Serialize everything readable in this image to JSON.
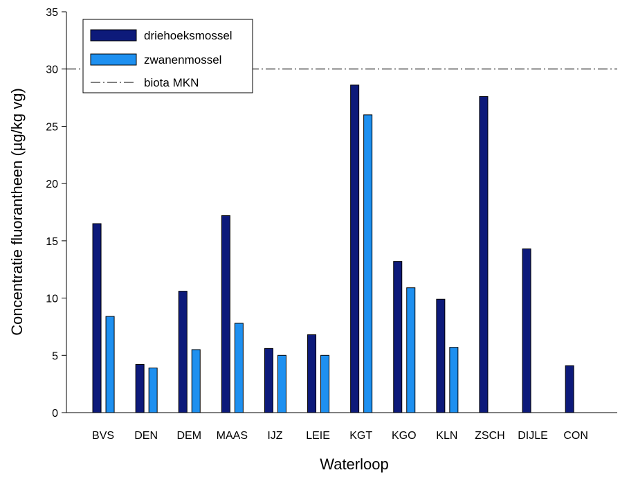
{
  "chart_data": {
    "type": "bar",
    "xlabel": "Waterloop",
    "ylabel": "Concentratie fluorantheen (µg/kg vg)",
    "ylim": [
      0,
      35
    ],
    "yticks": [
      0,
      5,
      10,
      15,
      20,
      25,
      30,
      35
    ],
    "categories": [
      "BVS",
      "DEN",
      "DEM",
      "MAAS",
      "IJZ",
      "LEIE",
      "KGT",
      "KGO",
      "KLN",
      "ZSCH",
      "DIJLE",
      "CON"
    ],
    "series": [
      {
        "name": "driehoeksmossel",
        "color": "#0d1a7a",
        "values": [
          16.5,
          4.2,
          10.6,
          17.2,
          5.6,
          6.8,
          28.6,
          13.2,
          9.9,
          27.6,
          14.3,
          4.1
        ]
      },
      {
        "name": "zwanenmossel",
        "color": "#1e90f0",
        "values": [
          8.4,
          3.9,
          5.5,
          7.8,
          5.0,
          5.0,
          26.0,
          10.9,
          5.7,
          null,
          null,
          null
        ]
      }
    ],
    "reference_line": {
      "name": "biota MKN",
      "value": 30,
      "style": "dash-dot"
    },
    "legend_position": "top-left",
    "grid": false
  }
}
